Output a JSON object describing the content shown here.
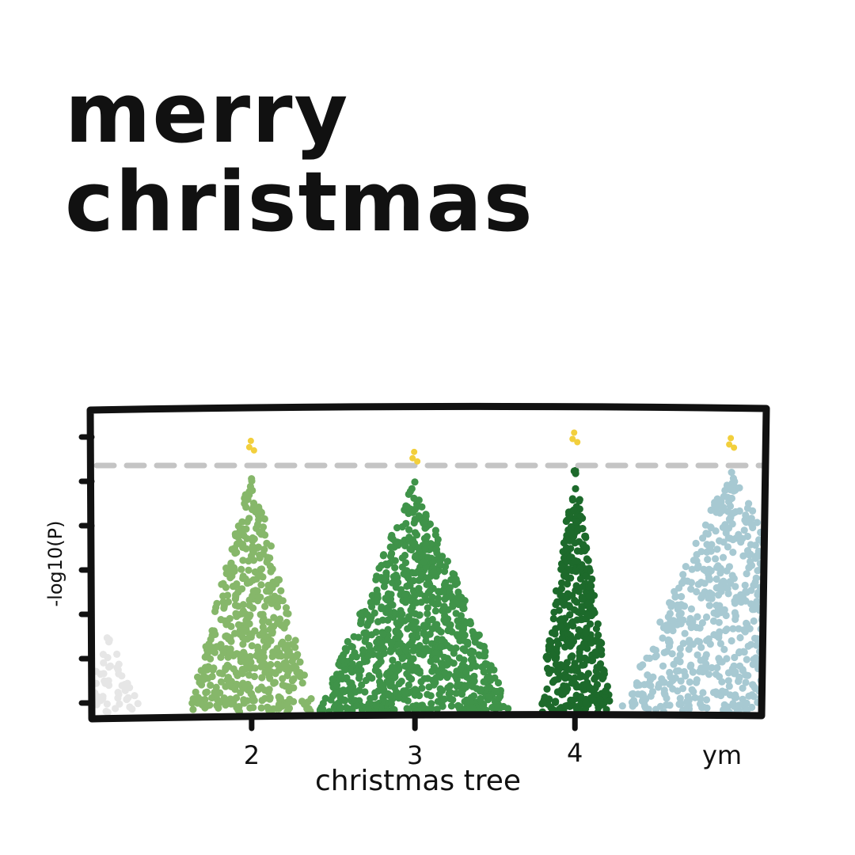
{
  "title_lines": [
    "merry",
    "christmas"
  ],
  "chart_data": {
    "type": "scatter",
    "subtype": "manhattan",
    "title": "merry christmas",
    "xlabel": "christmas tree",
    "ylabel": "-log10(P)",
    "x_tick_labels": [
      "2",
      "3",
      "4",
      "ym"
    ],
    "significance_line": {
      "y": 0.91,
      "style": "dashed",
      "color": "#c4c4c4"
    },
    "grid": false,
    "legend": "none",
    "ylim": [
      0,
      1.1
    ],
    "peaks": [
      {
        "label": "",
        "center": 0.02,
        "half_width": 0.05,
        "height": 0.3,
        "points": 60,
        "color": "#e6e6e6",
        "star": false
      },
      {
        "label": "2",
        "center": 0.235,
        "half_width": 0.095,
        "height": 0.89,
        "points": 520,
        "color": "#86b76a",
        "star": true
      },
      {
        "label": "3",
        "center": 0.48,
        "half_width": 0.145,
        "height": 0.85,
        "points": 900,
        "color": "#3f9349",
        "star": true
      },
      {
        "label": "4",
        "center": 0.72,
        "half_width": 0.055,
        "height": 0.92,
        "points": 420,
        "color": "#1d6a2b",
        "star": true
      },
      {
        "label": "ym",
        "center": 0.955,
        "half_width": 0.17,
        "height": 0.9,
        "points": 650,
        "color": "#a7c9d2",
        "star": true
      }
    ],
    "star_color": "#f2cf3c"
  }
}
